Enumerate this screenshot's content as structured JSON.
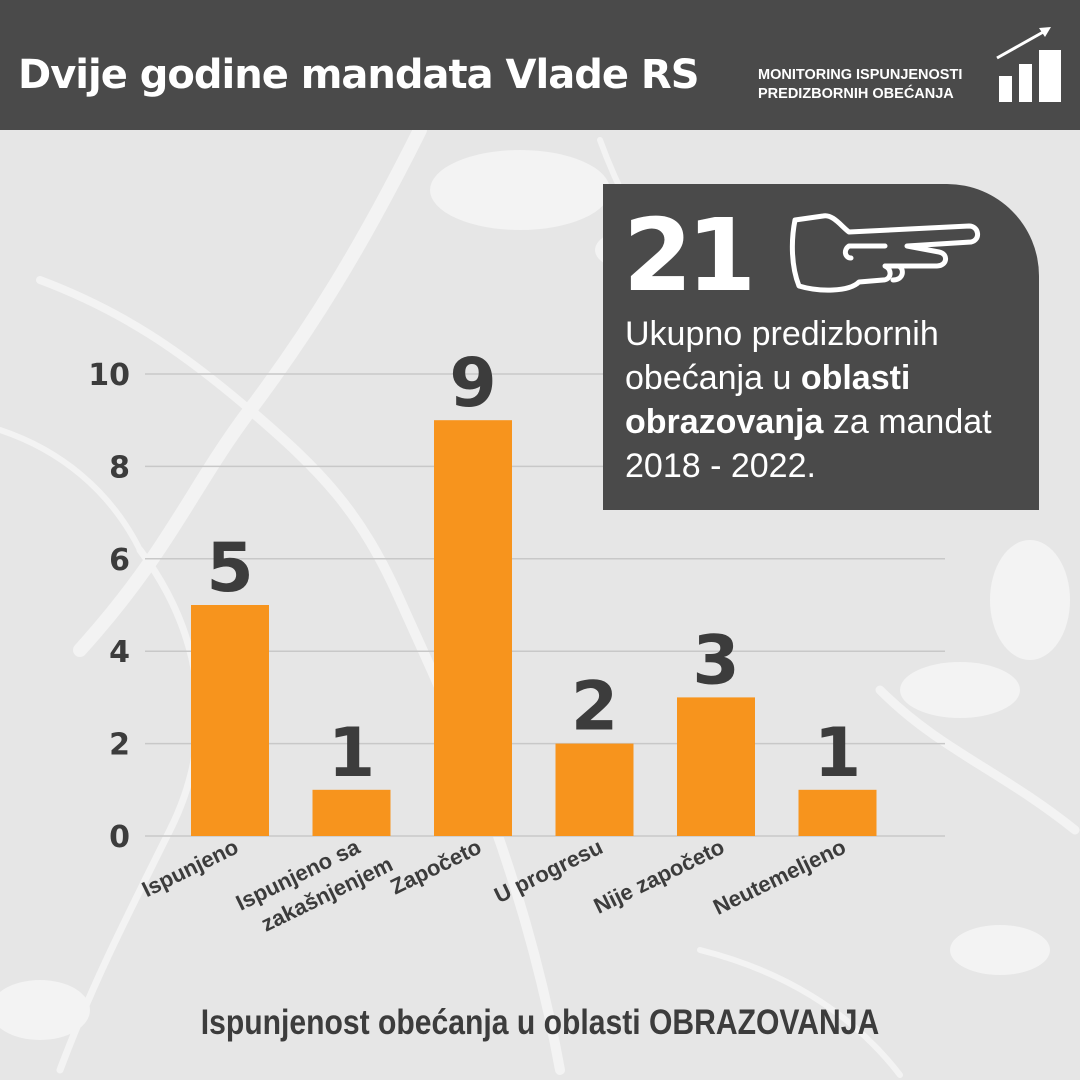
{
  "header": {
    "title": "Dvije godine mandata Vlade RS",
    "subtitle_line1": "MONITORING ISPUNJENOSTI",
    "subtitle_line2": "PREDIZBORNIH OBEĆANJA",
    "logo_icon": "rising-bars-arrow-icon"
  },
  "callout": {
    "number": "21",
    "icon": "pointing-hand-icon",
    "text_1": "Ukupno predizbornih obećanja u ",
    "text_bold_1": "oblasti obrazovanja",
    "text_2": " za mandat 2018 - 2022."
  },
  "footer": {
    "caption_regular": "Ispunjenost obećanja u oblasti ",
    "caption_bold": "OBRAZOVANJA"
  },
  "colors": {
    "bar": "#f7941d",
    "dark": "#4a4a4a",
    "background": "#e6e6e6",
    "text": "#3c3c3c"
  },
  "chart_data": {
    "type": "bar",
    "categories": [
      "Ispunjeno",
      "Ispunjeno sa zakašnjenjem",
      "Započeto",
      "U progresu",
      "Nije započeto",
      "Neutemeljeno"
    ],
    "category_lines": [
      [
        "Ispunjeno"
      ],
      [
        "Ispunjeno sa",
        "zakašnjenjem"
      ],
      [
        "Započeto"
      ],
      [
        "U progresu"
      ],
      [
        "Nije započeto"
      ],
      [
        "Neutemeljeno"
      ]
    ],
    "values": [
      5,
      1,
      9,
      2,
      3,
      1
    ],
    "data_labels": [
      "5",
      "1",
      "9",
      "2",
      "3",
      "1"
    ],
    "yticks": [
      0,
      2,
      4,
      6,
      8,
      10
    ],
    "ylim": [
      0,
      10
    ],
    "grid": true,
    "legend": "none",
    "title": "",
    "xlabel": "",
    "ylabel": ""
  }
}
